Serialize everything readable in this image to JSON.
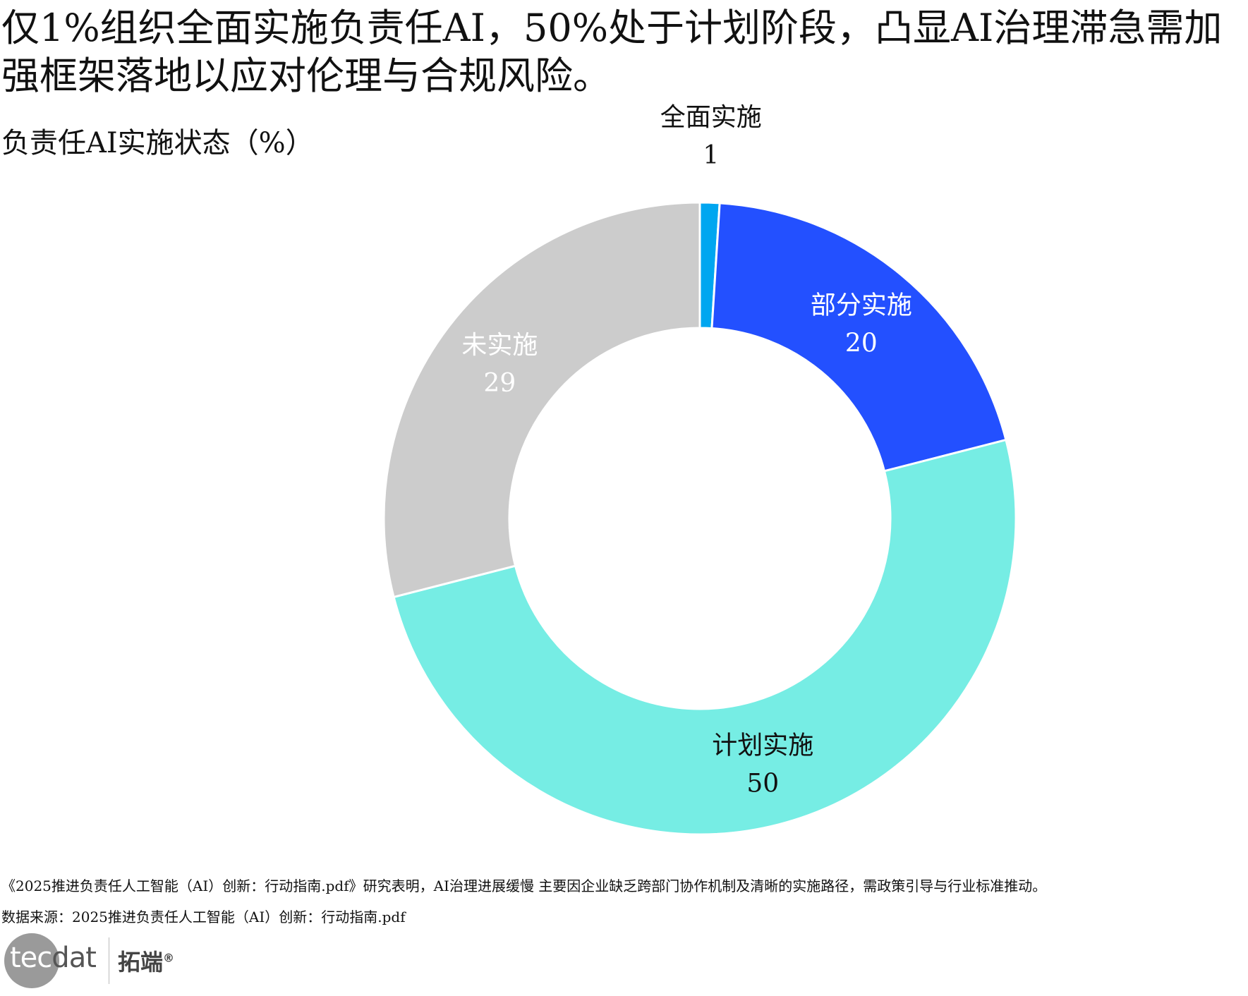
{
  "title": "仅1%组织全面实施负责任AI，50%处于计划阶段，凸显AI治理滞急需加强框架落地以应对伦理与合规风险。",
  "chart_data": {
    "type": "pie",
    "subtype": "donut",
    "title": "负责任AI实施状态（%）",
    "categories": [
      "全面实施",
      "部分实施",
      "计划实施",
      "未实施"
    ],
    "values": [
      1,
      20,
      50,
      29
    ],
    "colors": [
      "#00a6f0",
      "#2350ff",
      "#76ede4",
      "#cccccc"
    ],
    "label_colors": [
      "#111111",
      "#ffffff",
      "#111111",
      "#ffffff"
    ],
    "start_angle": "top",
    "direction": "clockwise"
  },
  "footer": {
    "note": "《2025推进负责任人工智能（AI）创新：行动指南.pdf》研究表明，AI治理进展缓慢 主要因企业缺乏跨部门协作机制及清晰的实施路径，需政策引导与行业标准推动。",
    "source": "数据来源：2025推进负责任人工智能（AI）创新：行动指南.pdf"
  },
  "logo": {
    "en_1": "tec",
    "en_2": "dat",
    "cn": "拓端",
    "mark": "®"
  }
}
